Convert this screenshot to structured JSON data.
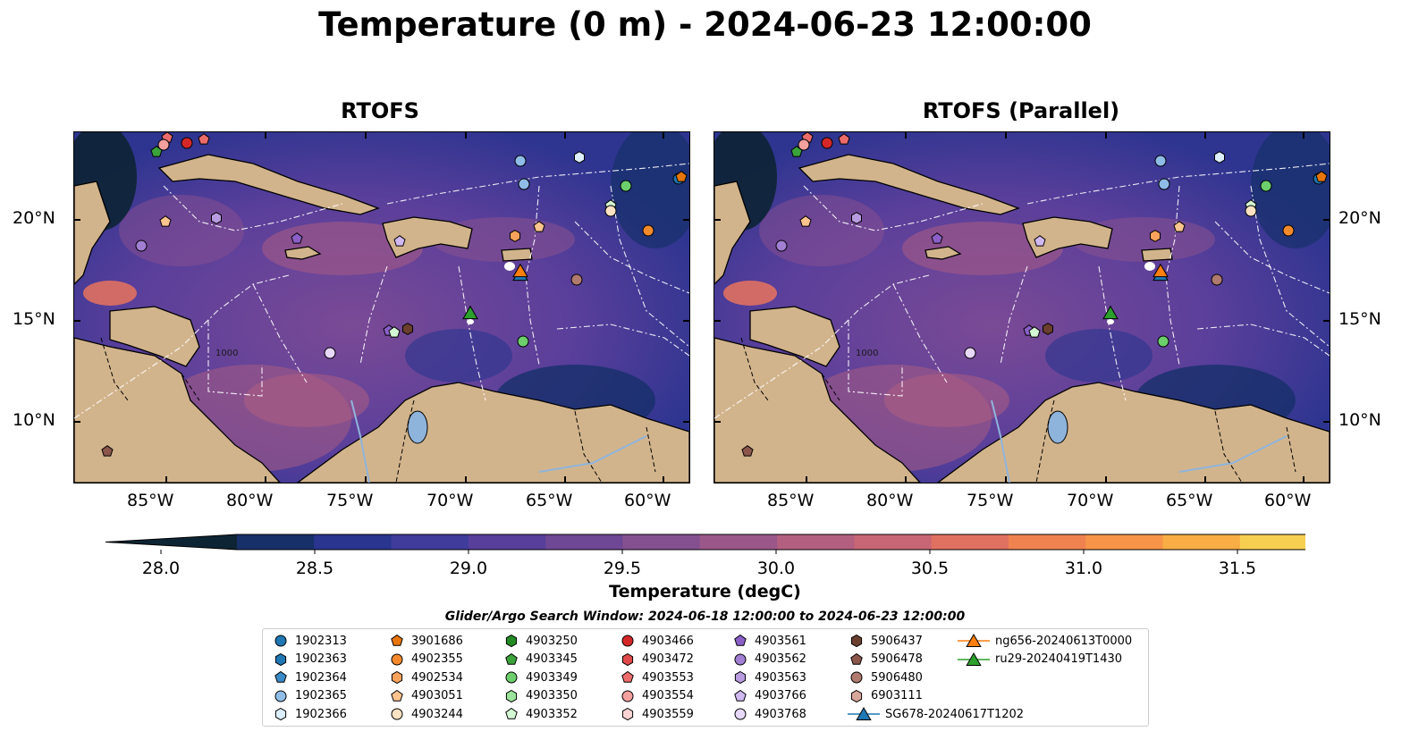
{
  "title": "Temperature (0 m) - 2024-06-23 12:00:00",
  "panels": [
    {
      "title": "RTOFS"
    },
    {
      "title": "RTOFS (Parallel)"
    }
  ],
  "lat_ticks": [
    "20°N",
    "15°N",
    "10°N"
  ],
  "lon_ticks": [
    "85°W",
    "80°W",
    "75°W",
    "70°W",
    "65°W",
    "60°W"
  ],
  "contour_label": "1000",
  "colorbar": {
    "label": "Temperature (degC)",
    "min": 28.0,
    "max": 31.5,
    "ticks": [
      "28.0",
      "28.5",
      "29.0",
      "29.5",
      "30.0",
      "30.5",
      "31.0",
      "31.5"
    ],
    "colors": [
      "#0d2434",
      "#17306a",
      "#2a3590",
      "#3f3c9c",
      "#583f9b",
      "#6e4795",
      "#855090",
      "#9b5789",
      "#b35f80",
      "#c86675",
      "#e07060",
      "#f08250",
      "#f69548",
      "#f9ae45",
      "#f7cf50",
      "#eef866"
    ],
    "extend": "both"
  },
  "search_window": "Glider/Argo Search Window: 2024-06-18 12:00:00 to 2024-06-23 12:00:00",
  "land_color": "#d2b48c",
  "legend": {
    "items": [
      {
        "label": "1902313",
        "color": "#1f77b4",
        "marker": "circle"
      },
      {
        "label": "1902363",
        "color": "#1f77b4",
        "marker": "hexagon"
      },
      {
        "label": "1902364",
        "color": "#3a8ac8",
        "marker": "pentagon"
      },
      {
        "label": "1902365",
        "color": "#8fbde8",
        "marker": "circle"
      },
      {
        "label": "1902366",
        "color": "#ddeeff",
        "marker": "hexagon"
      },
      {
        "label": "3901686",
        "color": "#e8740c",
        "marker": "pentagon"
      },
      {
        "label": "4902355",
        "color": "#f58a2c",
        "marker": "circle"
      },
      {
        "label": "4902534",
        "color": "#fba25c",
        "marker": "hexagon"
      },
      {
        "label": "4903051",
        "color": "#fdc48f",
        "marker": "pentagon"
      },
      {
        "label": "4903244",
        "color": "#fde3c4",
        "marker": "circle"
      },
      {
        "label": "4903250",
        "color": "#238b23",
        "marker": "hexagon"
      },
      {
        "label": "4903345",
        "color": "#3aa33a",
        "marker": "pentagon"
      },
      {
        "label": "4903349",
        "color": "#6ccf6c",
        "marker": "circle"
      },
      {
        "label": "4903350",
        "color": "#9be49b",
        "marker": "hexagon"
      },
      {
        "label": "4903352",
        "color": "#d4f7d4",
        "marker": "pentagon"
      },
      {
        "label": "4903466",
        "color": "#d62728",
        "marker": "circle"
      },
      {
        "label": "4903472",
        "color": "#e04a4a",
        "marker": "hexagon"
      },
      {
        "label": "4903553",
        "color": "#ec6c6c",
        "marker": "pentagon"
      },
      {
        "label": "4903554",
        "color": "#f4a09e",
        "marker": "circle"
      },
      {
        "label": "4903559",
        "color": "#fbd5d3",
        "marker": "hexagon"
      },
      {
        "label": "4903561",
        "color": "#8a5fc8",
        "marker": "pentagon"
      },
      {
        "label": "4903562",
        "color": "#a17fd3",
        "marker": "circle"
      },
      {
        "label": "4903563",
        "color": "#b89be0",
        "marker": "hexagon"
      },
      {
        "label": "4903766",
        "color": "#d0b8f0",
        "marker": "pentagon"
      },
      {
        "label": "4903768",
        "color": "#e8d8fa",
        "marker": "circle"
      },
      {
        "label": "5906437",
        "color": "#6b3f2e",
        "marker": "hexagon"
      },
      {
        "label": "5906478",
        "color": "#8c564b",
        "marker": "pentagon"
      },
      {
        "label": "5906480",
        "color": "#b07a6e",
        "marker": "circle"
      },
      {
        "label": "6903111",
        "color": "#d8a79a",
        "marker": "hexagon"
      },
      {
        "label": "SG678-20240617T1202",
        "color": "#1f77b4",
        "marker": "triangle"
      },
      {
        "label": "ng656-20240613T0000",
        "color": "#ff7f0e",
        "marker": "triangle"
      },
      {
        "label": "ru29-20240419T1430",
        "color": "#2ca02c",
        "marker": "triangle"
      }
    ]
  }
}
